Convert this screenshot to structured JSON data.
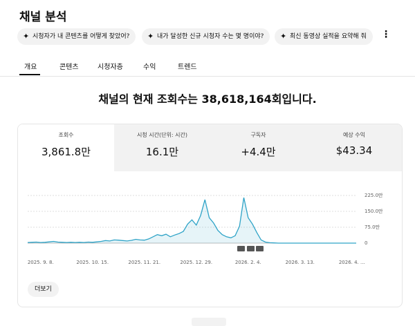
{
  "header": {
    "title": "채널 분석"
  },
  "chips": [
    "시청자가 내 콘텐츠를 어떻게 찾았어?",
    "내가 달성한 신규 시청자 수는 몇 명이야?",
    "최신 동영상 실적을 요약해 줘"
  ],
  "tabs": [
    "개요",
    "콘텐츠",
    "시청자층",
    "수익",
    "트렌드"
  ],
  "headline": "채널의 현재 조회수는 38,618,164회입니다.",
  "metrics": [
    {
      "label": "조회수",
      "value": "3,861.8만"
    },
    {
      "label": "시청 시간(단위: 시간)",
      "value": "16.1만"
    },
    {
      "label": "구독자",
      "value": "+4.4만"
    },
    {
      "label": "예상 수익",
      "value": "$43.34"
    }
  ],
  "chart_data": {
    "type": "line",
    "color": "#2ea3c7",
    "categories": [
      null,
      null,
      null,
      "2025. 9. 8.",
      null,
      null,
      null,
      null,
      null,
      null,
      null,
      null,
      null,
      null,
      null,
      "2025. 10. 15.",
      null,
      null,
      null,
      null,
      null,
      null,
      null,
      null,
      null,
      null,
      null,
      "2025. 11. 21.",
      null,
      null,
      null,
      null,
      null,
      null,
      null,
      null,
      null,
      null,
      null,
      "2025. 12. 29.",
      null,
      null,
      null,
      null,
      null,
      null,
      null,
      null,
      null,
      null,
      null,
      "2026. 2. 4.",
      null,
      null,
      null,
      null,
      null,
      null,
      null,
      null,
      null,
      null,
      null,
      "2026. 3. 13.",
      null,
      null,
      null,
      null,
      null,
      null,
      null,
      null,
      null,
      null,
      null,
      "2026. 4. ...",
      null
    ],
    "values": [
      3,
      4,
      5,
      3,
      4,
      6,
      8,
      5,
      4,
      3,
      4,
      3,
      4,
      3,
      5,
      4,
      6,
      8,
      12,
      10,
      15,
      14,
      12,
      10,
      13,
      18,
      15,
      14,
      20,
      30,
      40,
      35,
      42,
      30,
      38,
      45,
      55,
      90,
      110,
      85,
      130,
      205,
      120,
      95,
      60,
      40,
      30,
      25,
      35,
      80,
      215,
      120,
      90,
      50,
      15,
      5,
      2,
      1,
      0,
      0,
      0,
      0,
      0,
      0,
      0,
      0,
      0,
      0,
      0,
      0,
      0,
      0,
      0,
      0,
      0,
      0,
      0
    ],
    "ylim": [
      0,
      225
    ],
    "yticks": [
      0,
      {
        "value": 75,
        "label": "75.0만"
      },
      {
        "value": 150,
        "label": "150.0만"
      },
      {
        "value": 225,
        "label": "225.0만"
      }
    ],
    "grid": true
  },
  "more_button": "더보기"
}
